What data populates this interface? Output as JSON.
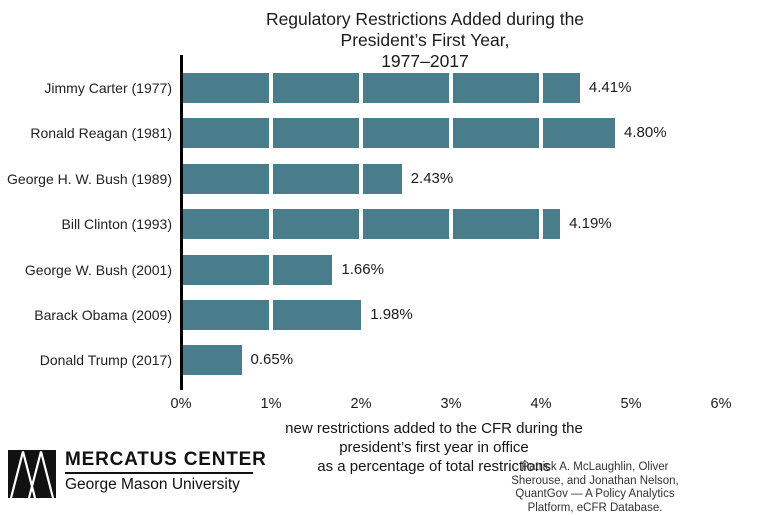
{
  "chart_data": {
    "type": "bar",
    "orientation": "horizontal",
    "title": "Regulatory Restrictions Added during the President’s First Year,\n1977–2017",
    "categories": [
      "Jimmy Carter (1977)",
      "Ronald Reagan (1981)",
      "George H. W. Bush (1989)",
      "Bill Clinton (1993)",
      "George W. Bush (2001)",
      "Barack Obama (2009)",
      "Donald Trump (2017)"
    ],
    "values": [
      4.41,
      4.8,
      2.43,
      4.19,
      1.66,
      1.98,
      0.65
    ],
    "value_labels": [
      "4.41%",
      "4.80%",
      "2.43%",
      "4.19%",
      "1.66%",
      "1.98%",
      "0.65%"
    ],
    "x_ticks": [
      "0%",
      "1%",
      "2%",
      "3%",
      "4%",
      "5%",
      "6%"
    ],
    "xlim": [
      0,
      6
    ],
    "xlabel": "new restrictions added to the CFR during the president’s first year in office\nas a percentage of total restrictions",
    "legend": "none",
    "grid": "white vertical tick lines drawn over bars at each 1% interval",
    "bar_color": "#4a7d8b",
    "gridline_color": "#ffffff",
    "axis_color": "#000000"
  },
  "footer": {
    "logo_icon": "mercatus-m-mark",
    "logo_title": "MERCATUS CENTER",
    "logo_subtitle": "George Mason University",
    "attribution": "Patrick A. McLaughlin, Oliver Sherouse, and Jonathan Nelson,\nQuantGov — A Policy Analytics Platform, eCFR Database."
  }
}
